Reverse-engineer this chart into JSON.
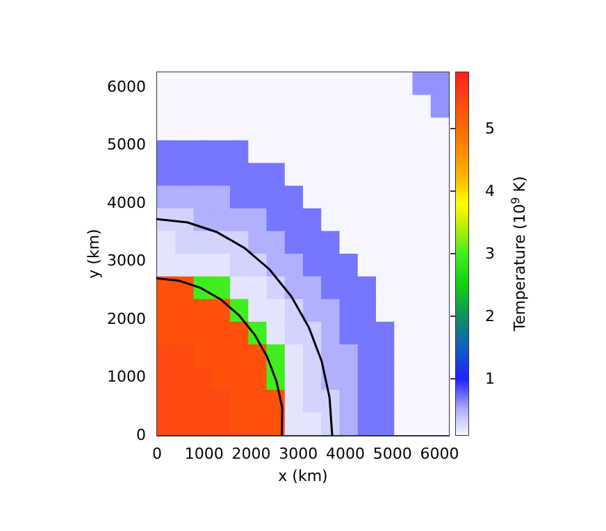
{
  "chart_data": {
    "type": "heatmap",
    "xlabel": "x (km)",
    "ylabel": "y (km)",
    "clabel": "Temperature (10$^{9}$ K)",
    "xlim": [
      0,
      6200
    ],
    "ylim": [
      0,
      6250
    ],
    "xticks": [
      0,
      1000,
      2000,
      3000,
      4000,
      5000,
      6000
    ],
    "yticks": [
      0,
      1000,
      2000,
      3000,
      4000,
      5000,
      6000
    ],
    "clim": [
      0.1,
      5.9
    ],
    "cticks": [
      1,
      2,
      3,
      4,
      5
    ],
    "cells": [
      [
        0,
        0,
        0,
        0,
        0,
        0,
        0,
        0,
        0,
        0,
        0,
        0,
        0,
        0,
        0.6,
        0.6
      ],
      [
        0,
        0,
        0,
        0,
        0,
        0,
        0,
        0,
        0,
        0,
        0,
        0,
        0,
        0,
        0,
        0.6
      ],
      [
        0,
        0,
        0,
        0,
        0,
        0,
        0,
        0,
        0,
        0,
        0,
        0,
        0,
        0,
        0,
        0
      ],
      [
        0.7,
        0.7,
        0.7,
        0.7,
        0.7,
        0,
        0,
        0,
        0,
        0,
        0,
        0,
        0,
        0,
        0,
        0
      ],
      [
        0.7,
        0.7,
        0.7,
        0.7,
        0.7,
        0.7,
        0.7,
        0,
        0,
        0,
        0,
        0,
        0,
        0,
        0,
        0
      ],
      [
        0.5,
        0.5,
        0.5,
        0.5,
        0.7,
        0.7,
        0.7,
        0.7,
        0,
        0,
        0,
        0,
        0,
        0,
        0,
        0
      ],
      [
        0.3,
        0.3,
        0.5,
        0.5,
        0.5,
        0.5,
        0.7,
        0.7,
        0.7,
        0,
        0,
        0,
        0,
        0,
        0,
        0
      ],
      [
        0.2,
        0.3,
        0.3,
        0.3,
        0.3,
        0.5,
        0.5,
        0.7,
        0.7,
        0.7,
        0,
        0,
        0,
        0,
        0,
        0
      ],
      [
        0.2,
        0.2,
        0.2,
        0.2,
        0.3,
        0.3,
        0.5,
        0.5,
        0.7,
        0.7,
        0.7,
        0,
        0,
        0,
        0,
        0
      ],
      [
        5.3,
        5.3,
        3,
        3,
        0.2,
        0.2,
        0.3,
        0.5,
        0.5,
        0.7,
        0.7,
        0.7,
        0,
        0,
        0,
        0
      ],
      [
        5.3,
        5.3,
        5.3,
        5.3,
        3,
        0.2,
        0.2,
        0.3,
        0.5,
        0.5,
        0.7,
        0.7,
        0,
        0,
        0,
        0
      ],
      [
        5.3,
        5.3,
        5.3,
        5.3,
        5.3,
        3,
        0.2,
        0.3,
        0.3,
        0.5,
        0.7,
        0.7,
        0.7,
        0,
        0,
        0
      ],
      [
        5.4,
        5.4,
        5.3,
        5.3,
        5.3,
        5.3,
        3,
        0.2,
        0.3,
        0.5,
        0.5,
        0.7,
        0.7,
        0,
        0,
        0
      ],
      [
        5.4,
        5.4,
        5.4,
        5.3,
        5.3,
        5.3,
        3,
        0.2,
        0.3,
        0.5,
        0.5,
        0.7,
        0.7,
        0,
        0,
        0
      ],
      [
        5.4,
        5.4,
        5.4,
        5.4,
        5.3,
        5.3,
        5.3,
        0.2,
        0.3,
        0.3,
        0.5,
        0.7,
        0.7,
        0,
        0,
        0
      ],
      [
        5.4,
        5.4,
        5.4,
        5.4,
        5.3,
        5.3,
        5.3,
        0.2,
        0.2,
        0.3,
        0.5,
        0.7,
        0.7,
        0,
        0,
        0
      ]
    ],
    "series": [
      {
        "type": "line",
        "color": "#000000",
        "x": [
          0,
          469,
          923,
          1350,
          1736,
          2068,
          2338,
          2538,
          2659,
          2650
        ],
        "values": [
          2700,
          2659,
          2537,
          2338,
          2068,
          1735,
          1350,
          923,
          469,
          0
        ]
      },
      {
        "type": "line",
        "color": "#000000",
        "x": [
          0,
          647,
          1272,
          1860,
          2392,
          2850,
          3222,
          3497,
          3664,
          3720
        ],
        "values": [
          3720,
          3664,
          3496,
          3222,
          2850,
          2391,
          1860,
          1272,
          646,
          0
        ]
      }
    ],
    "marker": "none",
    "line_style": "solid"
  }
}
